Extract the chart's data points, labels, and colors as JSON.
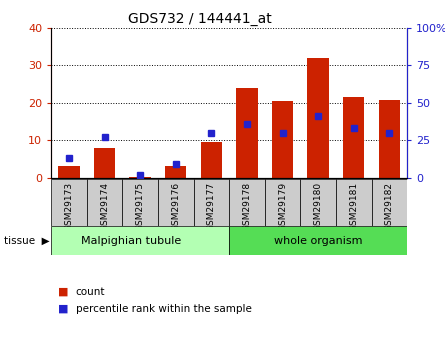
{
  "title": "GDS732 / 144441_at",
  "samples": [
    "GSM29173",
    "GSM29174",
    "GSM29175",
    "GSM29176",
    "GSM29177",
    "GSM29178",
    "GSM29179",
    "GSM29180",
    "GSM29181",
    "GSM29182"
  ],
  "counts": [
    3.0,
    8.0,
    0.3,
    3.0,
    9.5,
    24.0,
    20.5,
    32.0,
    21.5,
    20.8
  ],
  "percentiles": [
    13,
    27,
    2,
    9,
    30,
    36,
    30,
    41,
    33,
    30
  ],
  "tissue_labels": [
    "Malpighian tubule",
    "whole organism"
  ],
  "tissue_split": 5,
  "bar_color": "#cc2200",
  "marker_color": "#2222cc",
  "left_ylim": [
    0,
    40
  ],
  "right_ylim": [
    0,
    100
  ],
  "left_yticks": [
    0,
    10,
    20,
    30,
    40
  ],
  "right_yticks": [
    0,
    25,
    50,
    75,
    100
  ],
  "right_yticklabels": [
    "0",
    "25",
    "50",
    "75",
    "100%"
  ],
  "left_tick_color": "#cc2200",
  "right_tick_color": "#2222cc",
  "grid_color": "#000000",
  "tissue_color1": "#b3ffb3",
  "tissue_color2": "#55dd55",
  "xtick_bg_color": "#cccccc",
  "legend_count_label": "count",
  "legend_pct_label": "percentile rank within the sample"
}
